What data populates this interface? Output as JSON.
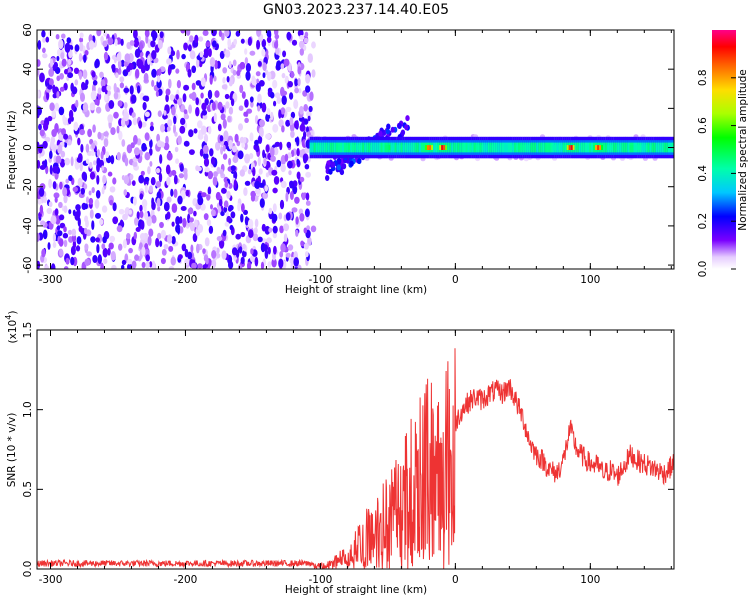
{
  "title": "GN03.2023.237.14.40.E05",
  "chart_data": [
    {
      "type": "heatmap",
      "name": "spectrogram",
      "xlabel": "Height of straight line (km)",
      "ylabel": "Frequency (Hz)",
      "xlim": [
        -310,
        162
      ],
      "ylim": [
        -62,
        60
      ],
      "xticks": [
        "-300",
        "-200",
        "-100",
        "0",
        "100"
      ],
      "xtick_values": [
        -300,
        -200,
        -100,
        0,
        100
      ],
      "yticks": [
        "60",
        "40",
        "20",
        "0",
        "-20",
        "-40",
        "-60"
      ],
      "ytick_values": [
        60,
        40,
        20,
        0,
        -20,
        -40,
        -60
      ],
      "noise_region": {
        "x": [
          -310,
          -105
        ],
        "amplitude": "0.15-0.25"
      },
      "signal_band": {
        "x": [
          -108,
          162
        ],
        "center_frequency": 0,
        "half_width": 2.5,
        "peaks": [
          {
            "x": -50,
            "amplitude": 0.5
          },
          {
            "x": -20,
            "amplitude": 0.9
          },
          {
            "x": -10,
            "amplitude": 0.95
          },
          {
            "x": 85,
            "amplitude": 0.95
          },
          {
            "x": 105,
            "amplitude": 0.9
          }
        ]
      },
      "colorbar": {
        "label": "Normalized spectral amplitude",
        "ticks": [
          "0.0",
          "0.2",
          "0.4",
          "0.6",
          "0.8"
        ],
        "tick_values": [
          0.0,
          0.2,
          0.4,
          0.6,
          0.8
        ],
        "range": [
          0,
          1
        ]
      }
    },
    {
      "type": "line",
      "name": "snr",
      "xlabel": "Height of straight line (km)",
      "ylabel": "SNR (10 * v/v)",
      "y_multiplier": "(x10",
      "y_multiplier_exp": "4",
      "y_multiplier_close": ")",
      "xlim": [
        -310,
        162
      ],
      "ylim": [
        0,
        1.5
      ],
      "xticks": [
        "-300",
        "-200",
        "-100",
        "0",
        "100"
      ],
      "xtick_values": [
        -300,
        -200,
        -100,
        0,
        100
      ],
      "yticks": [
        "0.0",
        "0.5",
        "1.0",
        "1.5"
      ],
      "ytick_values": [
        0.0,
        0.5,
        1.0,
        1.5
      ],
      "color": "#ee3333",
      "series": [
        {
          "x": [
            -310,
            -250,
            -200,
            -150,
            -105,
            -95,
            -88,
            -80,
            -72,
            -65,
            -58,
            -50,
            -45,
            -40,
            -35,
            -30,
            -25,
            -22,
            -18,
            -15,
            -12,
            -8,
            -5,
            0,
            5,
            10,
            15,
            20,
            25,
            30,
            35,
            40,
            45,
            50,
            55,
            60,
            65,
            70,
            75,
            80,
            85,
            90,
            95,
            100,
            105,
            110,
            115,
            120,
            125,
            130,
            135,
            140,
            145,
            150,
            155,
            162
          ],
          "y": [
            0.02,
            0.02,
            0.02,
            0.02,
            0.02,
            0.03,
            0.06,
            0.1,
            0.18,
            0.25,
            0.32,
            0.38,
            0.45,
            0.5,
            0.6,
            0.68,
            0.75,
            0.8,
            0.78,
            0.7,
            0.72,
            0.75,
            0.85,
            0.92,
            1.0,
            1.05,
            1.08,
            1.06,
            1.1,
            1.12,
            1.1,
            1.15,
            1.05,
            0.95,
            0.8,
            0.72,
            0.68,
            0.62,
            0.6,
            0.68,
            0.88,
            0.75,
            0.7,
            0.66,
            0.65,
            0.6,
            0.62,
            0.58,
            0.65,
            0.72,
            0.68,
            0.66,
            0.64,
            0.62,
            0.6,
            0.66
          ],
          "noise_level": 0.07
        }
      ]
    }
  ]
}
